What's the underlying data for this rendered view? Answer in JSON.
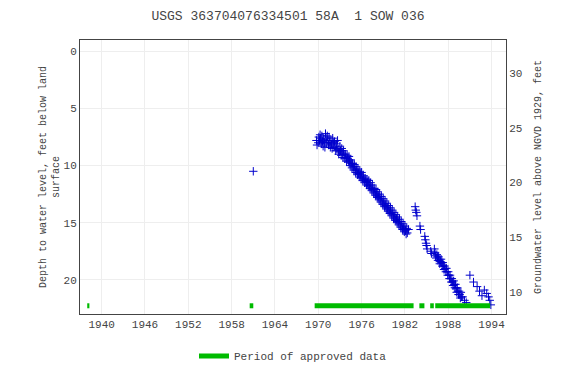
{
  "chart_data": {
    "type": "scatter",
    "title": "USGS 363704076334501 58A  1 SOW 036",
    "y_label": "Depth to water level, feet below land\nsurface",
    "y2_label": "Groundwater level above NGVD 1929, feet",
    "xlim": [
      1937,
      1996
    ],
    "xticks": [
      1940,
      1946,
      1952,
      1958,
      1964,
      1970,
      1976,
      1982,
      1988,
      1994
    ],
    "ylim": [
      23,
      -1
    ],
    "yticks": [
      0,
      5,
      10,
      15,
      20
    ],
    "y2lim": [
      8,
      33
    ],
    "y2ticks": [
      10,
      15,
      20,
      25,
      30
    ],
    "grid": true,
    "legend": "bottom",
    "color": "#0000cc",
    "marker": "plus",
    "x": [
      1961.0,
      1969.75,
      1969.83,
      1970.0,
      1970.08,
      1970.17,
      1970.25,
      1970.33,
      1970.42,
      1970.5,
      1970.58,
      1970.67,
      1970.75,
      1970.83,
      1970.92,
      1971.0,
      1971.08,
      1971.17,
      1971.25,
      1971.33,
      1971.42,
      1971.5,
      1971.58,
      1971.67,
      1971.75,
      1971.83,
      1971.92,
      1972.0,
      1972.08,
      1972.17,
      1972.25,
      1972.33,
      1972.42,
      1972.5,
      1972.58,
      1972.67,
      1972.75,
      1972.83,
      1972.92,
      1973.0,
      1973.08,
      1973.17,
      1973.25,
      1973.33,
      1973.42,
      1973.5,
      1973.58,
      1973.67,
      1973.75,
      1973.83,
      1973.92,
      1974.0,
      1974.08,
      1974.17,
      1974.25,
      1974.33,
      1974.42,
      1974.5,
      1974.58,
      1974.67,
      1974.75,
      1974.83,
      1974.92,
      1975.0,
      1975.08,
      1975.17,
      1975.25,
      1975.33,
      1975.42,
      1975.5,
      1975.58,
      1975.67,
      1975.75,
      1975.83,
      1975.92,
      1976.0,
      1976.08,
      1976.17,
      1976.25,
      1976.33,
      1976.42,
      1976.5,
      1976.58,
      1976.67,
      1976.75,
      1976.83,
      1976.92,
      1977.0,
      1977.08,
      1977.17,
      1977.25,
      1977.33,
      1977.42,
      1977.5,
      1977.58,
      1977.67,
      1977.75,
      1977.83,
      1977.92,
      1978.0,
      1978.08,
      1978.17,
      1978.25,
      1978.33,
      1978.42,
      1978.5,
      1978.58,
      1978.67,
      1978.75,
      1978.83,
      1978.92,
      1979.0,
      1979.08,
      1979.17,
      1979.25,
      1979.33,
      1979.42,
      1979.5,
      1979.58,
      1979.67,
      1979.75,
      1979.83,
      1979.92,
      1980.0,
      1980.08,
      1980.17,
      1980.25,
      1980.33,
      1980.42,
      1980.5,
      1980.58,
      1980.67,
      1980.75,
      1980.83,
      1980.92,
      1981.0,
      1981.08,
      1981.17,
      1981.25,
      1981.33,
      1981.42,
      1981.5,
      1981.58,
      1981.67,
      1981.75,
      1981.83,
      1981.92,
      1982.0,
      1982.08,
      1982.17,
      1982.25,
      1982.33,
      1982.5,
      1983.42,
      1983.5,
      1983.58,
      1983.67,
      1984.08,
      1984.17,
      1984.75,
      1984.83,
      1984.92,
      1985.0,
      1985.08,
      1985.58,
      1985.67,
      1986.08,
      1986.17,
      1986.25,
      1986.33,
      1986.42,
      1986.5,
      1986.58,
      1986.67,
      1986.75,
      1986.83,
      1986.92,
      1987.0,
      1987.08,
      1987.17,
      1987.25,
      1987.33,
      1987.42,
      1987.5,
      1987.58,
      1987.67,
      1987.75,
      1987.83,
      1987.92,
      1988.0,
      1988.08,
      1988.17,
      1988.25,
      1988.33,
      1988.42,
      1988.5,
      1988.58,
      1988.67,
      1988.75,
      1988.83,
      1988.92,
      1989.0,
      1989.08,
      1989.17,
      1989.25,
      1989.33,
      1989.42,
      1989.5,
      1989.58,
      1989.67,
      1989.75,
      1989.83,
      1990.0,
      1990.25,
      1990.5,
      1991.0,
      1991.5,
      1992.0,
      1992.33,
      1992.67,
      1993.0,
      1993.33,
      1993.58,
      1993.75,
      1993.9
    ],
    "values": [
      10.5,
      7.8,
      8.2,
      8.0,
      7.5,
      7.8,
      7.3,
      7.6,
      8.1,
      7.4,
      7.9,
      8.3,
      7.7,
      8.0,
      8.4,
      7.2,
      7.6,
      8.0,
      7.4,
      7.8,
      8.2,
      7.5,
      8.0,
      8.4,
      7.8,
      8.1,
      8.5,
      7.6,
      8.0,
      8.4,
      7.9,
      8.3,
      8.7,
      8.1,
      8.5,
      7.8,
      8.6,
      9.0,
      8.8,
      8.3,
      8.7,
      9.1,
      8.5,
      8.9,
      9.3,
      8.7,
      9.0,
      9.4,
      9.0,
      9.3,
      9.6,
      9.1,
      9.4,
      9.7,
      9.2,
      9.6,
      10.0,
      9.5,
      9.8,
      10.2,
      9.8,
      10.1,
      10.4,
      9.9,
      10.3,
      10.6,
      10.1,
      10.4,
      10.8,
      10.3,
      10.7,
      11.0,
      10.5,
      10.8,
      11.1,
      10.6,
      11.0,
      11.3,
      10.9,
      11.2,
      11.5,
      11.1,
      11.4,
      11.7,
      11.2,
      11.5,
      11.8,
      11.3,
      11.7,
      12.0,
      11.5,
      11.9,
      12.2,
      11.7,
      12.1,
      12.4,
      12.0,
      12.3,
      12.6,
      12.1,
      12.5,
      12.8,
      12.3,
      12.7,
      13.0,
      12.5,
      12.9,
      13.2,
      12.7,
      13.1,
      13.4,
      12.9,
      13.3,
      13.6,
      13.1,
      13.5,
      13.8,
      13.3,
      13.7,
      14.0,
      13.5,
      13.9,
      14.2,
      13.7,
      14.1,
      14.4,
      13.9,
      14.3,
      14.6,
      14.1,
      14.5,
      14.8,
      14.3,
      14.7,
      15.0,
      14.5,
      14.9,
      15.2,
      14.7,
      15.1,
      15.4,
      14.9,
      15.3,
      15.6,
      15.1,
      15.5,
      15.8,
      15.3,
      15.7,
      16.0,
      15.5,
      15.9,
      15.6,
      13.6,
      13.9,
      14.1,
      14.4,
      15.3,
      15.6,
      16.2,
      16.5,
      16.8,
      17.0,
      17.3,
      17.5,
      17.7,
      17.3,
      17.6,
      17.9,
      18.1,
      17.8,
      18.0,
      18.3,
      18.0,
      18.3,
      18.6,
      18.4,
      18.2,
      18.5,
      18.8,
      18.5,
      18.8,
      19.1,
      18.8,
      19.0,
      19.3,
      19.0,
      19.3,
      19.6,
      19.3,
      19.6,
      19.9,
      19.6,
      19.9,
      20.2,
      19.9,
      20.2,
      20.5,
      20.1,
      20.4,
      20.7,
      20.4,
      20.8,
      21.1,
      20.7,
      21.0,
      21.3,
      21.0,
      21.3,
      21.6,
      21.1,
      21.5,
      21.5,
      21.8,
      22.0,
      19.6,
      20.2,
      20.6,
      21.0,
      21.4,
      20.9,
      21.2,
      21.5,
      21.8,
      22.2
    ],
    "periods": [
      {
        "name": "Period of approved data",
        "color": "#00bb00",
        "ranges": [
          [
            1938.0,
            1938.3
          ],
          [
            1960.5,
            1961.0
          ],
          [
            1969.5,
            1983.2
          ],
          [
            1984.0,
            1984.7
          ],
          [
            1985.5,
            1986.0
          ],
          [
            1986.2,
            1993.8
          ]
        ]
      }
    ]
  }
}
